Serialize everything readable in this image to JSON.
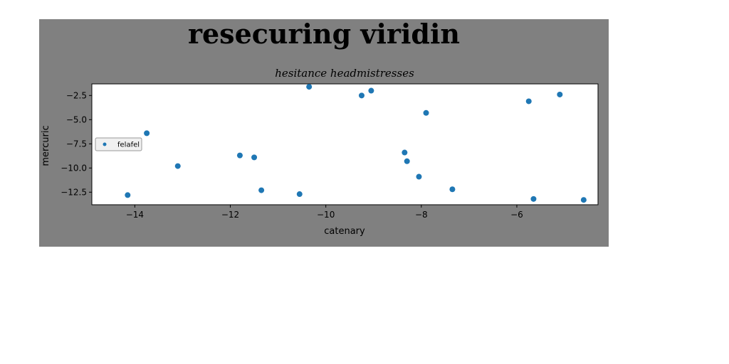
{
  "suptitle": "resecuring viridin",
  "chart_data": {
    "type": "scatter",
    "title": "hesitance headmistresses",
    "xlabel": "catenary",
    "ylabel": "mercuric",
    "xlim": [
      -14.9,
      -4.3
    ],
    "ylim": [
      -13.8,
      -1.3
    ],
    "xticks": [
      -14,
      -12,
      -10,
      -8,
      -6
    ],
    "xtick_labels": [
      "−14",
      "−12",
      "−10",
      "−8",
      "−6"
    ],
    "yticks": [
      -2.5,
      -5.0,
      -7.5,
      -10.0,
      -12.5
    ],
    "ytick_labels": [
      "−2.5",
      "−5.0",
      "−7.5",
      "−10.0",
      "−12.5"
    ],
    "grid": false,
    "legend_position": "center-left",
    "color": "#1f77b4",
    "series": [
      {
        "name": "felafel",
        "x": [
          -14.15,
          -13.75,
          -13.1,
          -11.8,
          -11.5,
          -11.35,
          -10.55,
          -10.35,
          -9.25,
          -9.05,
          -8.35,
          -8.3,
          -8.05,
          -7.9,
          -7.35,
          -5.75,
          -5.65,
          -5.1,
          -4.6
        ],
        "y": [
          -12.8,
          -6.4,
          -9.8,
          -8.7,
          -8.9,
          -12.3,
          -12.7,
          -1.6,
          -2.5,
          -2.0,
          -8.4,
          -9.3,
          -10.9,
          -4.3,
          -12.2,
          -3.1,
          -13.2,
          -2.4,
          -13.3
        ]
      }
    ]
  }
}
